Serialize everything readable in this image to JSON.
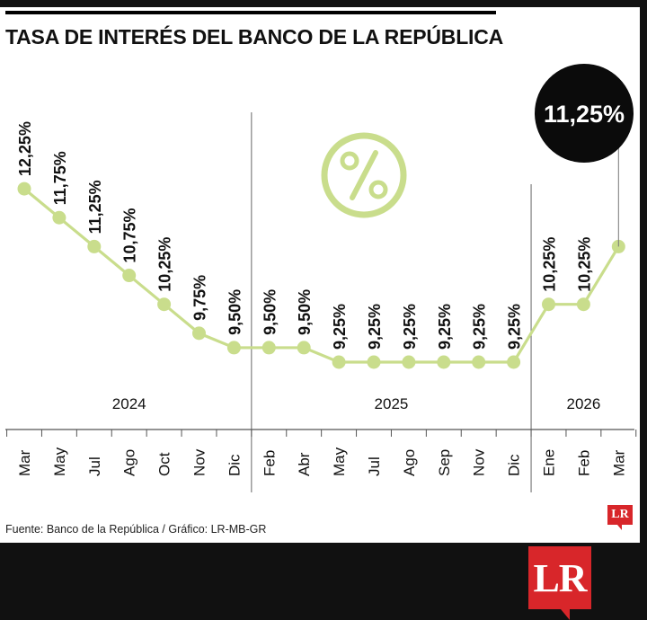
{
  "title": "TASA DE INTERÉS DEL BANCO DE LA REPÚBLICA",
  "source": "Fuente:  Banco de la República / Gráfico: LR-MB-GR",
  "logo_text": "LR",
  "colors": {
    "line": "#c9dd8c",
    "marker": "#c9dd8c",
    "text": "#111111",
    "brand": "#d8262a"
  },
  "chart_data": {
    "type": "line",
    "title": "TASA DE INTERÉS DEL BANCO DE LA REPÚBLICA",
    "categories": [
      "Mar",
      "May",
      "Jul",
      "Ago",
      "Oct",
      "Nov",
      "Dic",
      "Feb",
      "Abr",
      "May",
      "Jul",
      "Ago",
      "Sep",
      "Nov",
      "Dic",
      "Ene",
      "Feb",
      "Mar"
    ],
    "values": [
      12.25,
      11.75,
      11.25,
      10.75,
      10.25,
      9.75,
      9.5,
      9.5,
      9.5,
      9.25,
      9.25,
      9.25,
      9.25,
      9.25,
      9.25,
      10.25,
      10.25,
      11.25
    ],
    "labels": [
      "12,25%",
      "11,75%",
      "11,25%",
      "10,75%",
      "10,25%",
      "9,75%",
      "9,50%",
      "9,50%",
      "9,50%",
      "9,25%",
      "9,25%",
      "9,25%",
      "9,25%",
      "9,25%",
      "9,25%",
      "10,25%",
      "10,25%"
    ],
    "years": [
      {
        "label": "2024",
        "start": 0,
        "end": 6
      },
      {
        "label": "2025",
        "start": 7,
        "end": 14
      },
      {
        "label": "2026",
        "start": 15,
        "end": 17
      }
    ],
    "highlight": {
      "index": 17,
      "label": "11,25%"
    },
    "xlabel": "",
    "ylabel": "",
    "grid": false,
    "legend": "none"
  }
}
